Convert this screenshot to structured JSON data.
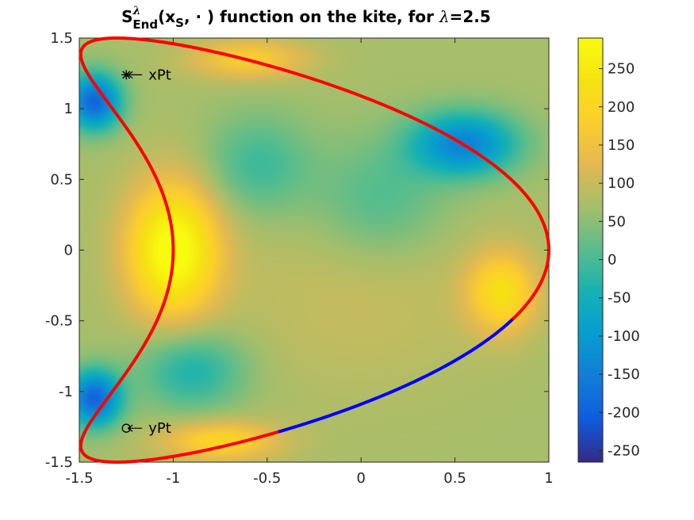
{
  "chart_data": {
    "type": "heatmap",
    "title": {
      "main": "S",
      "sup": "λ",
      "sub": "End",
      "rest1": "(x",
      "sub2": "S",
      "rest2": ", · ) function on the kite, for ",
      "lambda": "λ",
      "rest3": "=2.5"
    },
    "xlim": [
      -1.5,
      1
    ],
    "ylim": [
      -1.5,
      1.5
    ],
    "xticks": [
      -1.5,
      -1,
      -0.5,
      0,
      0.5,
      1
    ],
    "xtick_labels": [
      "-1.5",
      "-1",
      "-0.5",
      "0",
      "0.5",
      "1"
    ],
    "yticks": [
      -1.5,
      -1,
      -0.5,
      0,
      0.5,
      1,
      1.5
    ],
    "ytick_labels": [
      "-1.5",
      "-1",
      "-0.5",
      "0",
      "0.5",
      "1",
      "1.5"
    ],
    "colorbar": {
      "limits": [
        -265,
        290
      ],
      "ticks": [
        -250,
        -200,
        -150,
        -100,
        -50,
        0,
        50,
        100,
        150,
        200,
        250
      ],
      "tick_labels": [
        "-250",
        "-200",
        "-150",
        "-100",
        "-50",
        "0",
        "50",
        "100",
        "150",
        "200",
        "250"
      ],
      "colormap": "parula"
    },
    "field_features": [
      {
        "x": -1.0,
        "y": 0.0,
        "value": 260,
        "sx": 0.17,
        "sy": 0.33
      },
      {
        "x": -1.42,
        "y": 1.05,
        "value": -240,
        "sx": 0.1,
        "sy": 0.14
      },
      {
        "x": -1.42,
        "y": -1.05,
        "value": -240,
        "sx": 0.1,
        "sy": 0.14
      },
      {
        "x": 0.55,
        "y": 0.75,
        "value": -190,
        "sx": 0.2,
        "sy": 0.16
      },
      {
        "x": 0.75,
        "y": -0.3,
        "value": 170,
        "sx": 0.13,
        "sy": 0.2
      },
      {
        "x": -0.75,
        "y": -1.35,
        "value": 150,
        "sx": 0.22,
        "sy": 0.1
      },
      {
        "x": -0.6,
        "y": 1.35,
        "value": 130,
        "sx": 0.22,
        "sy": 0.1
      },
      {
        "x": -0.55,
        "y": 0.6,
        "value": -60,
        "sx": 0.2,
        "sy": 0.25
      },
      {
        "x": 0.1,
        "y": 0.35,
        "value": -50,
        "sx": 0.25,
        "sy": 0.3
      },
      {
        "x": -0.9,
        "y": -0.85,
        "value": -90,
        "sx": 0.2,
        "sy": 0.2
      },
      {
        "x": 0.0,
        "y": -0.3,
        "value": 50,
        "sx": 0.5,
        "sy": 0.5
      }
    ],
    "base_value": 70,
    "kite_curve": {
      "param": "x = cos(t) + 0.65 cos(2t) - 0.65, y = 1.5 sin(t)",
      "color": "#ff0000",
      "highlight_segment": {
        "color": "#0000ff",
        "x_from": -0.45,
        "x_to": 0.8,
        "y_from": -1.3,
        "y_to": -0.5
      }
    },
    "annotations": [
      {
        "label": "xPt",
        "marker": "*",
        "x": -1.25,
        "y": 1.24
      },
      {
        "label": "yPt",
        "marker": "o",
        "x": -1.25,
        "y": -1.26
      }
    ]
  }
}
